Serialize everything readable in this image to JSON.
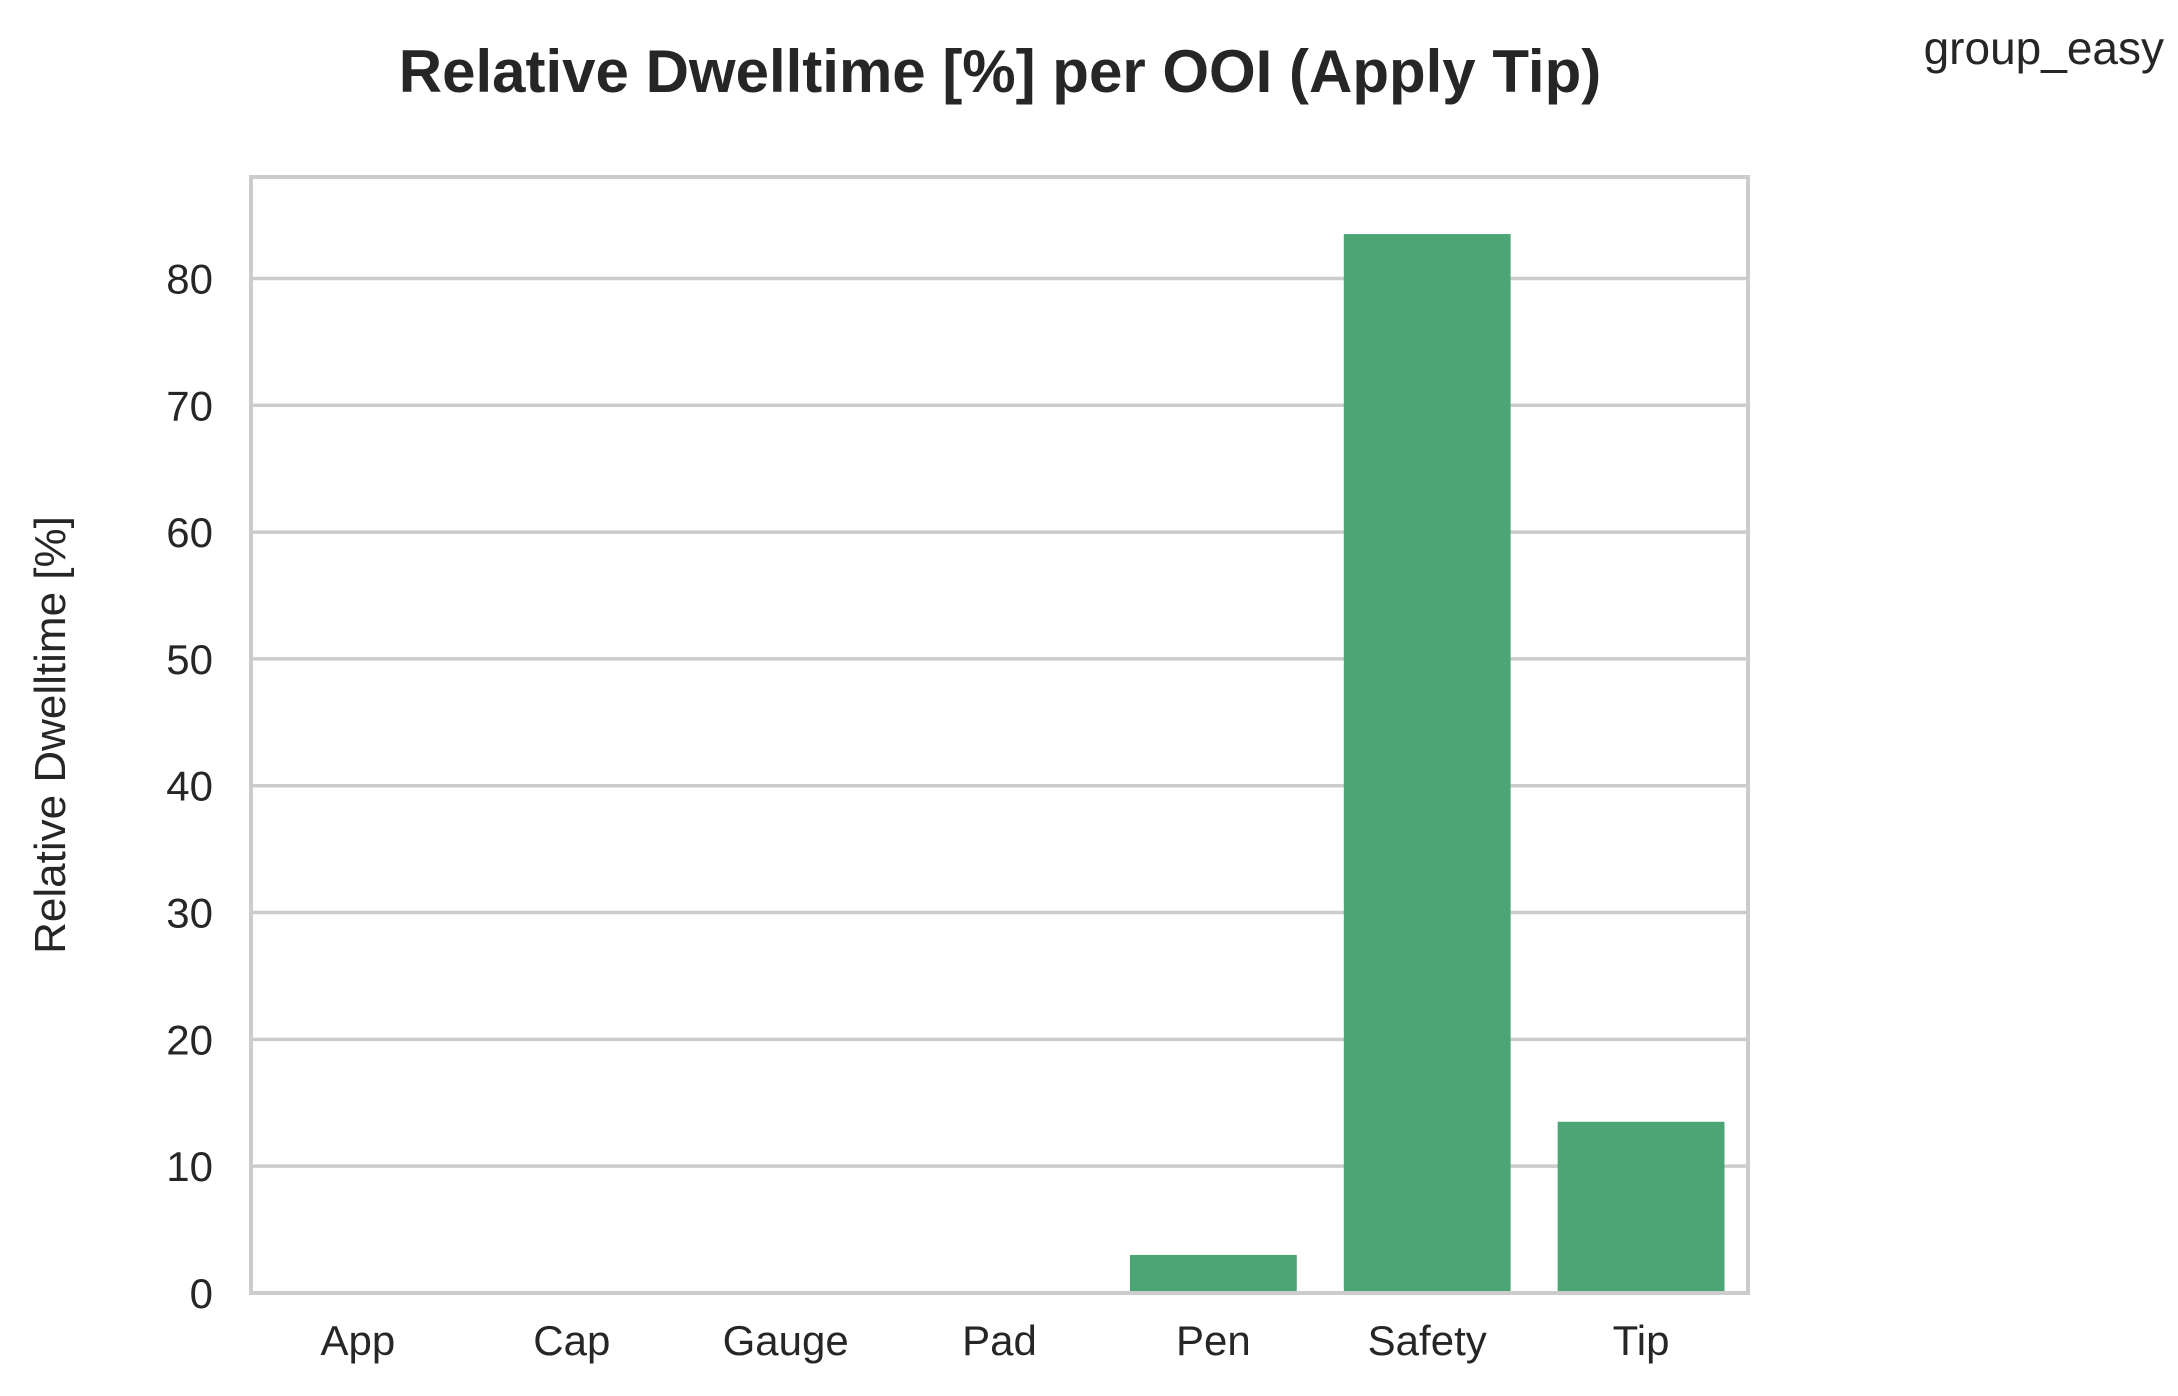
{
  "chart_data": {
    "type": "bar",
    "title": "Relative Dwelltime [%] per OOI (Apply Tip)",
    "xlabel": "",
    "ylabel": "Relative Dwelltime [%]",
    "categories": [
      "App",
      "Cap",
      "Gauge",
      "Pad",
      "Pen",
      "Safety",
      "Tip"
    ],
    "series": [
      {
        "name": "group_easy",
        "values": [
          0,
          0,
          0,
          0,
          3.0,
          83.5,
          13.5
        ],
        "color": "#4ca574"
      }
    ],
    "ylim": [
      0,
      88
    ],
    "yticks": [
      0,
      10,
      20,
      30,
      40,
      50,
      60,
      70,
      80
    ],
    "grid": true,
    "legend_position": "top-right"
  }
}
